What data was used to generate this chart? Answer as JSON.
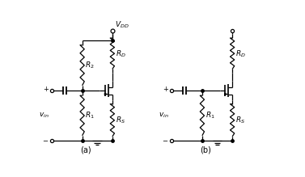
{
  "background_color": "#ffffff",
  "line_color": "#000000",
  "label_a": "(a)",
  "label_b": "(b)",
  "VDD_label": "$V_{DD}$",
  "RD_label": "$R_D$",
  "R1_label": "$R_1$",
  "R2_label": "$R_2$",
  "RS_label": "$R_S$",
  "vin_label": "$v_{in}$",
  "figsize": [
    3.77,
    2.19
  ],
  "dpi": 100,
  "xlim": [
    0,
    10
  ],
  "ylim": [
    0,
    5.8
  ]
}
